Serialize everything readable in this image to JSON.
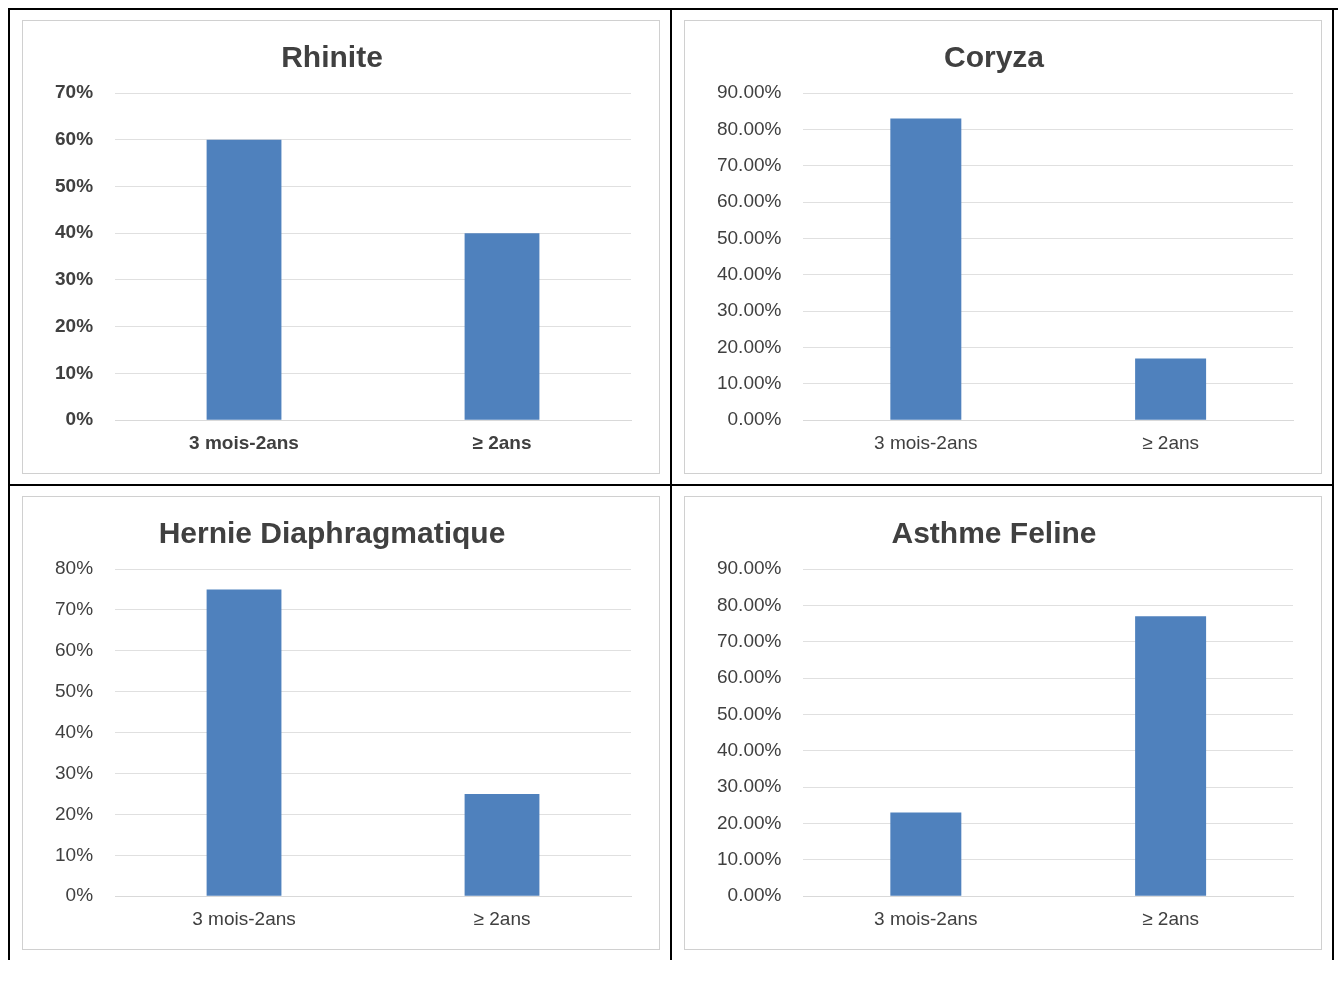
{
  "chart_data": [
    {
      "type": "bar",
      "title": "Rhinite",
      "categories": [
        "3 mois-2ans",
        "≥ 2ans"
      ],
      "values": [
        60,
        40
      ],
      "color": "#4f81bd",
      "ylim": [
        0,
        70
      ],
      "yticks": [
        {
          "value": 0,
          "label": "0%"
        },
        {
          "value": 10,
          "label": "10%"
        },
        {
          "value": 20,
          "label": "20%"
        },
        {
          "value": 30,
          "label": "30%"
        },
        {
          "value": 40,
          "label": "40%"
        },
        {
          "value": 50,
          "label": "50%"
        },
        {
          "value": 60,
          "label": "60%"
        },
        {
          "value": 70,
          "label": "70%"
        }
      ],
      "grid": "y",
      "legend": false
    },
    {
      "type": "bar",
      "title": "Coryza",
      "categories": [
        "3 mois-2ans",
        "≥ 2ans"
      ],
      "values": [
        83,
        17
      ],
      "color": "#4f81bd",
      "ylim": [
        0,
        90
      ],
      "yticks": [
        {
          "value": 0,
          "label": "0.00%"
        },
        {
          "value": 10,
          "label": "10.00%"
        },
        {
          "value": 20,
          "label": "20.00%"
        },
        {
          "value": 30,
          "label": "30.00%"
        },
        {
          "value": 40,
          "label": "40.00%"
        },
        {
          "value": 50,
          "label": "50.00%"
        },
        {
          "value": 60,
          "label": "60.00%"
        },
        {
          "value": 70,
          "label": "70.00%"
        },
        {
          "value": 80,
          "label": "80.00%"
        },
        {
          "value": 90,
          "label": "90.00%"
        }
      ],
      "grid": "y",
      "legend": false
    },
    {
      "type": "bar",
      "title": "Hernie Diaphragmatique",
      "categories": [
        "3 mois-2ans",
        "≥ 2ans"
      ],
      "values": [
        75,
        25
      ],
      "color": "#4f81bd",
      "ylim": [
        0,
        80
      ],
      "yticks": [
        {
          "value": 0,
          "label": "0%"
        },
        {
          "value": 10,
          "label": "10%"
        },
        {
          "value": 20,
          "label": "20%"
        },
        {
          "value": 30,
          "label": "30%"
        },
        {
          "value": 40,
          "label": "40%"
        },
        {
          "value": 50,
          "label": "50%"
        },
        {
          "value": 60,
          "label": "60%"
        },
        {
          "value": 70,
          "label": "70%"
        },
        {
          "value": 80,
          "label": "80%"
        }
      ],
      "grid": "y",
      "legend": false
    },
    {
      "type": "bar",
      "title": "Asthme Feline",
      "categories": [
        "3 mois-2ans",
        "≥ 2ans"
      ],
      "values": [
        23,
        77
      ],
      "color": "#4f81bd",
      "ylim": [
        0,
        90
      ],
      "yticks": [
        {
          "value": 0,
          "label": "0.00%"
        },
        {
          "value": 10,
          "label": "10.00%"
        },
        {
          "value": 20,
          "label": "20.00%"
        },
        {
          "value": 30,
          "label": "30.00%"
        },
        {
          "value": 40,
          "label": "40.00%"
        },
        {
          "value": 50,
          "label": "50.00%"
        },
        {
          "value": 60,
          "label": "60.00%"
        },
        {
          "value": 70,
          "label": "70.00%"
        },
        {
          "value": 80,
          "label": "80.00%"
        },
        {
          "value": 90,
          "label": "90.00%"
        }
      ],
      "grid": "y",
      "legend": false
    }
  ]
}
